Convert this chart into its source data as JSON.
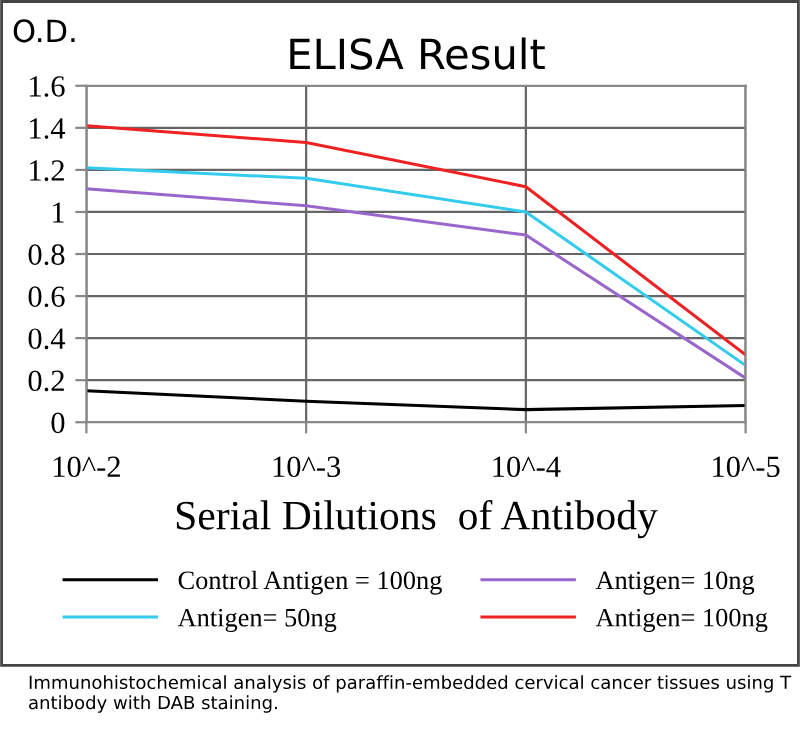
{
  "chart_data": {
    "type": "line",
    "title": "ELISA Result",
    "ylabel": "O.D.",
    "xlabel": "Serial Dilutions  of Antibody",
    "categories": [
      "10^-2",
      "10^-3",
      "10^-4",
      "10^-5"
    ],
    "series": [
      {
        "name": "Control Antigen = 100ng",
        "color": "#000000",
        "values": [
          0.15,
          0.1,
          0.06,
          0.08
        ]
      },
      {
        "name": "Antigen= 10ng",
        "color": "#9966cc",
        "values": [
          1.11,
          1.03,
          0.89,
          0.21
        ]
      },
      {
        "name": "Antigen= 50ng",
        "color": "#33ccee",
        "values": [
          1.21,
          1.16,
          1.0,
          0.27
        ]
      },
      {
        "name": "Antigen= 100ng",
        "color": "#ee2222",
        "values": [
          1.41,
          1.33,
          1.12,
          0.32
        ]
      }
    ],
    "ylim": [
      0,
      1.6
    ],
    "yticks": [
      0,
      0.2,
      0.4,
      0.6,
      0.8,
      1,
      1.2,
      1.4,
      1.6
    ],
    "grid": true,
    "legend": "bottom",
    "marker": "none",
    "line_style": "solid",
    "annotations": [
      "Immunohistochemical analysis of paraffin-embedded cervical cancer tissues using T antibody with DAB staining."
    ]
  }
}
